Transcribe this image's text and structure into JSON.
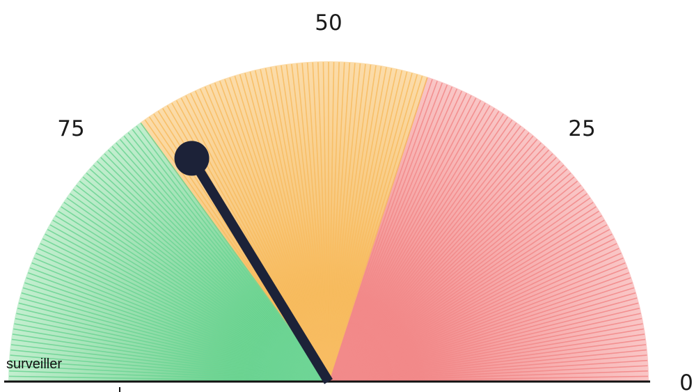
{
  "chart_data": {
    "type": "gauge",
    "range": [
      0,
      100
    ],
    "direction": "right-to-left",
    "value": 67.5,
    "tick_labels": [
      "50",
      "75",
      "25",
      "0"
    ],
    "bands": [
      {
        "from": 0,
        "to": 40,
        "color": "#f08080"
      },
      {
        "from": 40,
        "to": 70,
        "color": "#f5b041"
      },
      {
        "from": 70,
        "to": 100,
        "color": "#58d68d"
      }
    ],
    "status_label": "surveiller",
    "needle_color": "#1c2238"
  }
}
